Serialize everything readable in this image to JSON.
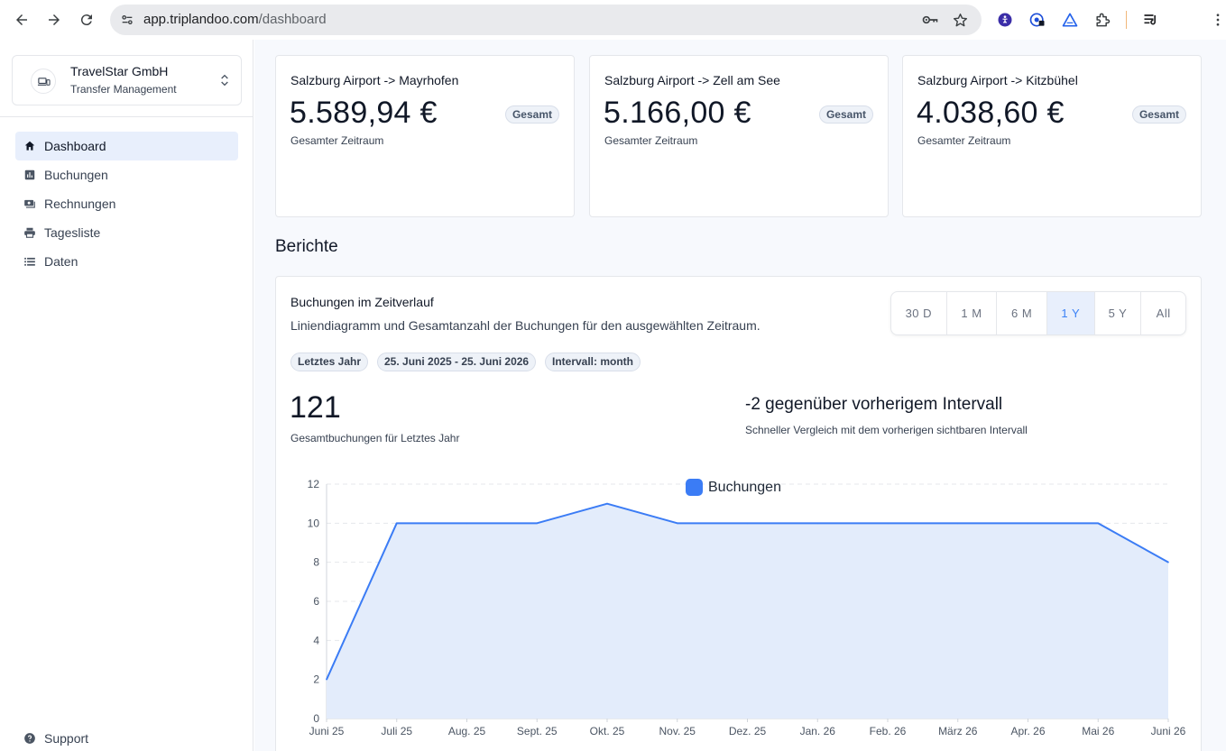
{
  "browser": {
    "url_host": "app.triplandoo.com",
    "url_path": "/dashboard"
  },
  "sidebar": {
    "org_name": "TravelStar GmbH",
    "org_subtitle": "Transfer Management",
    "items": [
      {
        "label": "Dashboard",
        "icon": "home-icon",
        "active": true
      },
      {
        "label": "Buchungen",
        "icon": "bar-chart-icon",
        "active": false
      },
      {
        "label": "Rechnungen",
        "icon": "payments-icon",
        "active": false
      },
      {
        "label": "Tagesliste",
        "icon": "printer-icon",
        "active": false
      },
      {
        "label": "Daten",
        "icon": "list-icon",
        "active": false
      }
    ],
    "support_label": "Support"
  },
  "stats": [
    {
      "route": "Salzburg Airport -> Mayrhofen",
      "amount": "5.589,94 €",
      "badge": "Gesamt",
      "caption": "Gesamter Zeitraum"
    },
    {
      "route": "Salzburg Airport -> Zell am See",
      "amount": "5.166,00 €",
      "badge": "Gesamt",
      "caption": "Gesamter Zeitraum"
    },
    {
      "route": "Salzburg Airport -> Kitzbühel",
      "amount": "4.038,60 €",
      "badge": "Gesamt",
      "caption": "Gesamter Zeitraum"
    }
  ],
  "reports": {
    "section_title": "Berichte",
    "card_title": "Buchungen im Zeitverlauf",
    "card_description": "Liniendiagramm und Gesamtanzahl der Buchungen für den ausgewählten Zeitraum.",
    "ranges": [
      "30 D",
      "1 M",
      "6 M",
      "1 Y",
      "5 Y",
      "All"
    ],
    "active_range": "1 Y",
    "chips": [
      "Letztes Jahr",
      "25. Juni 2025 - 25. Juni 2026",
      "Intervall: month"
    ],
    "total": "121",
    "total_caption": "Gesamtbuchungen für Letztes Jahr",
    "delta_title": "-2 gegenüber vorherigem Intervall",
    "delta_caption": "Schneller Vergleich mit dem vorherigen sichtbaren Intervall"
  },
  "colors": {
    "accent": "#3b7cf5",
    "area_fill": "#e3ecfb",
    "active_nav_bg": "#e8effc"
  },
  "chart_data": {
    "type": "area",
    "categories": [
      "Juni 25",
      "Juli 25",
      "Aug. 25",
      "Sept. 25",
      "Okt. 25",
      "Nov. 25",
      "Dez. 25",
      "Jan. 26",
      "Feb. 26",
      "März 26",
      "Apr. 26",
      "Mai 26",
      "Juni 26"
    ],
    "series": [
      {
        "name": "Buchungen",
        "values": [
          2,
          10,
          10,
          10,
          11,
          10,
          10,
          10,
          10,
          10,
          10,
          10,
          8
        ]
      }
    ],
    "yticks": [
      0,
      2,
      4,
      6,
      8,
      10,
      12
    ],
    "ylim": [
      0,
      12
    ],
    "grid": true,
    "legend": "top-center"
  }
}
